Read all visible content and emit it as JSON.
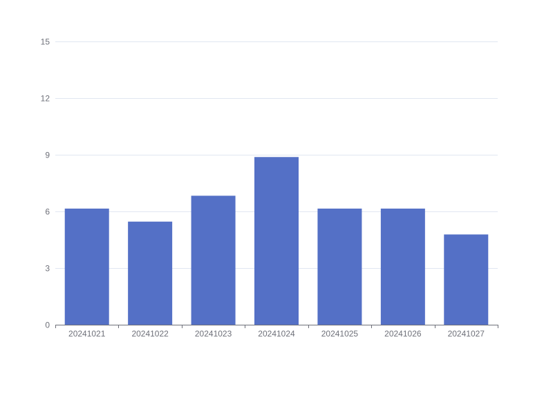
{
  "chart_data": {
    "type": "bar",
    "categories": [
      "20241021",
      "20241022",
      "20241023",
      "20241024",
      "20241025",
      "20241026",
      "20241027"
    ],
    "values": [
      6.15,
      5.46,
      6.83,
      8.88,
      6.15,
      6.15,
      4.78
    ],
    "title": "",
    "xlabel": "",
    "ylabel": "",
    "ylim": [
      0,
      15
    ],
    "yticks": [
      0,
      3,
      6,
      9,
      12,
      15
    ],
    "grid": true,
    "bar_color": "#5470c6"
  }
}
